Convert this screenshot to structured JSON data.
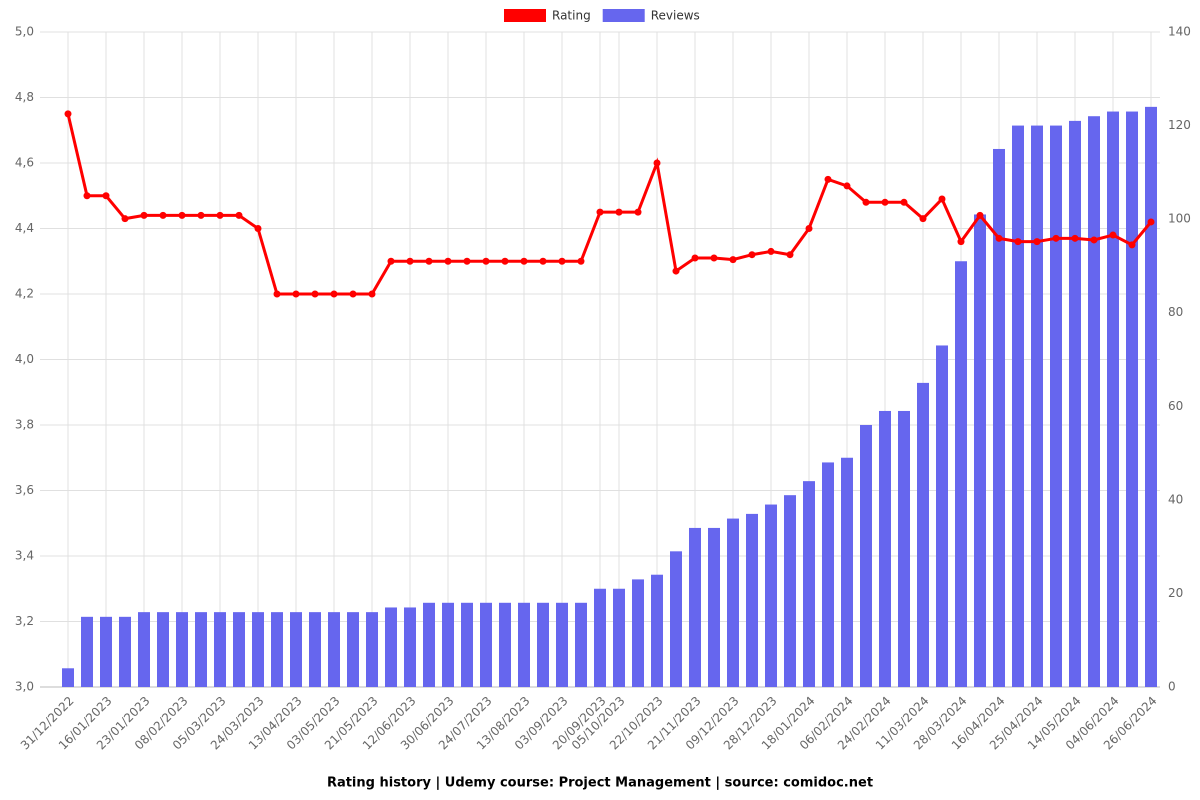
{
  "chart_data": {
    "type": "bar-line",
    "title": "Rating history | Udemy course: Project Management | source: comidoc.net",
    "categories": [
      "31/12/2022",
      null,
      "16/01/2023",
      null,
      "23/01/2023",
      null,
      "08/02/2023",
      null,
      "05/03/2023",
      null,
      "24/03/2023",
      null,
      "13/04/2023",
      null,
      "03/05/2023",
      null,
      "21/05/2023",
      null,
      "12/06/2023",
      null,
      "30/06/2023",
      null,
      "24/07/2023",
      null,
      "13/08/2023",
      null,
      "03/09/2023",
      null,
      "20/09/2023",
      "05/10/2023",
      null,
      "22/10/2023",
      null,
      "21/11/2023",
      null,
      "09/12/2023",
      null,
      "28/12/2023",
      null,
      "18/01/2024",
      null,
      "06/02/2024",
      null,
      "24/02/2024",
      null,
      "11/03/2024",
      null,
      "28/03/2024",
      null,
      "16/04/2024",
      null,
      "25/04/2024",
      null,
      "14/05/2024",
      null,
      "04/06/2024",
      null,
      "26/06/2024"
    ],
    "series": [
      {
        "name": "Rating",
        "color": "#ff0000",
        "kind": "line",
        "axis": "y",
        "values": [
          4.75,
          4.5,
          4.5,
          4.43,
          4.44,
          4.44,
          4.44,
          4.44,
          4.44,
          4.44,
          4.4,
          4.2,
          4.2,
          4.2,
          4.2,
          4.2,
          4.2,
          4.3,
          4.3,
          4.3,
          4.3,
          4.3,
          4.3,
          4.3,
          4.3,
          4.3,
          4.3,
          4.3,
          4.45,
          4.45,
          4.45,
          4.6,
          4.27,
          4.31,
          4.31,
          4.305,
          4.32,
          4.33,
          4.32,
          4.4,
          4.55,
          4.53,
          4.48,
          4.48,
          4.48,
          4.43,
          4.49,
          4.36,
          4.44,
          4.37,
          4.36,
          4.36,
          4.37,
          4.37,
          4.365,
          4.38,
          4.35,
          4.42
        ]
      },
      {
        "name": "Reviews",
        "color": "#6666ee",
        "kind": "bar",
        "axis": "y2",
        "values": [
          4,
          15,
          15,
          15,
          16,
          16,
          16,
          16,
          16,
          16,
          16,
          16,
          16,
          16,
          16,
          16,
          16,
          17,
          17,
          18,
          18,
          18,
          18,
          18,
          18,
          18,
          18,
          18,
          21,
          21,
          23,
          24,
          29,
          34,
          34,
          36,
          37,
          39,
          41,
          44,
          48,
          49,
          56,
          59,
          59,
          65,
          73,
          91,
          101,
          115,
          120,
          120,
          120,
          121,
          122,
          123,
          123,
          124
        ]
      }
    ],
    "ylim": [
      3,
      5
    ],
    "yticks": [
      {
        "value": 3,
        "label": "3,0"
      },
      {
        "value": 3.2,
        "label": "3,2"
      },
      {
        "value": 3.4,
        "label": "3,4"
      },
      {
        "value": 3.6,
        "label": "3,6"
      },
      {
        "value": 3.8,
        "label": "3,8"
      },
      {
        "value": 4,
        "label": "4,0"
      },
      {
        "value": 4.2,
        "label": "4,2"
      },
      {
        "value": 4.4,
        "label": "4,4"
      },
      {
        "value": 4.6,
        "label": "4,6"
      },
      {
        "value": 4.8,
        "label": "4,8"
      },
      {
        "value": 5,
        "label": "5,0"
      }
    ],
    "y2lim": [
      0,
      140
    ],
    "y2ticks": [
      0,
      20,
      40,
      60,
      80,
      100,
      120,
      140
    ],
    "grid": true,
    "legend": "top"
  }
}
